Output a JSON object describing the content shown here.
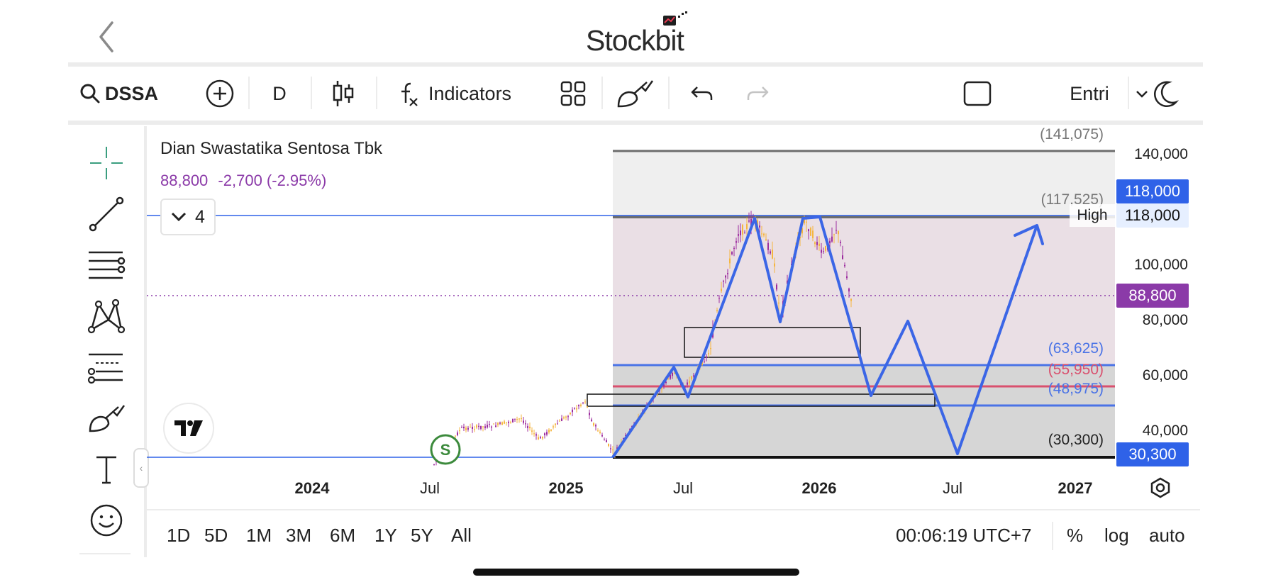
{
  "header": {
    "app_name": "Stockbit",
    "back_icon": "chevron-left-icon"
  },
  "toolbar": {
    "symbol": "DSSA",
    "timeframe": "D",
    "indicators_label": "Indicators",
    "layout_label": "Entri"
  },
  "left_tools": [
    {
      "name": "crosshair-icon"
    },
    {
      "name": "trend-line-icon"
    },
    {
      "name": "horizontal-lines-icon"
    },
    {
      "name": "pattern-icon"
    },
    {
      "name": "fib-tools-icon"
    },
    {
      "name": "brush-icon"
    },
    {
      "name": "text-icon"
    },
    {
      "name": "emoji-icon"
    }
  ],
  "chart": {
    "stock_name": "Dian Swastatika Sentosa Tbk",
    "last_price": "88,800",
    "change": "-2,700 (-2.95%)",
    "indicator_count": "4",
    "high_label": "High",
    "signal_badge": "S",
    "colors": {
      "accent_blue": "#2f62e8",
      "price_purple": "#8b3aa8",
      "fib_red": "#d9506e",
      "candle_up": "#f5b640",
      "candle_down": "#9c2d9e"
    }
  },
  "chart_data": {
    "type": "candlestick",
    "symbol": "DSSA",
    "x_ticks": [
      "2024",
      "Jul",
      "2025",
      "Jul",
      "2026",
      "Jul",
      "2027"
    ],
    "y_ticks": [
      "140,000",
      "100,000",
      "80,000",
      "60,000",
      "40,000"
    ],
    "price_tags": [
      {
        "value": "118,000",
        "style": "blue"
      },
      {
        "value": "118,000",
        "style": "light"
      },
      {
        "value": "88,800",
        "style": "purple"
      },
      {
        "value": "30,300",
        "style": "blue"
      }
    ],
    "fib_levels": [
      {
        "label": "(141,075)",
        "value": 141075
      },
      {
        "label": "(117,525)",
        "value": 117525
      },
      {
        "label": "(63,625)",
        "value": 63625
      },
      {
        "label": "(55,950)",
        "value": 55950
      },
      {
        "label": "(48,975)",
        "value": 48975
      },
      {
        "label": "(30,300)",
        "value": 30300
      }
    ],
    "horizontal_lines": [
      118000,
      88800,
      30300
    ],
    "last_close": 88800
  },
  "range_bar": {
    "ranges": [
      "1D",
      "5D",
      "1M",
      "3M",
      "6M",
      "1Y",
      "5Y",
      "All"
    ],
    "clock": "00:06:19 UTC+7",
    "percent": "%",
    "log": "log",
    "auto": "auto"
  }
}
